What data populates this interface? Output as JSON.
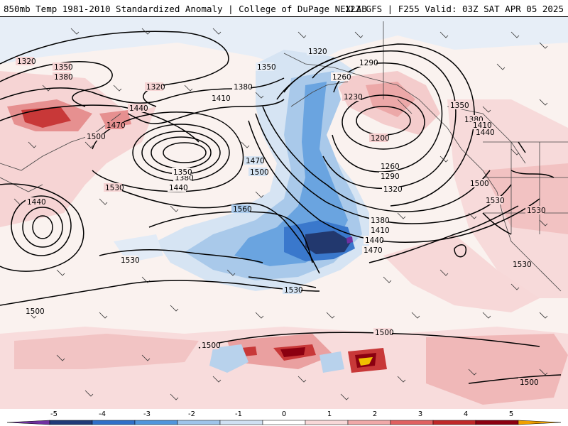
{
  "header": {
    "title_left": "850mb Temp 1981-2010 Standardized Anomaly | College of DuPage NEXLAB",
    "title_right": "12Z GFS | F255 Valid: 03Z SAT APR 05 2025"
  },
  "contour_labels": {
    "l1320a": "1320",
    "l1350a": "1350",
    "l1380a": "1380",
    "l1320b": "1320",
    "l1410a": "1410",
    "l1380b": "1380",
    "l1350b": "1350",
    "l1440a": "1440",
    "l1470a": "1470",
    "l1500a": "1500",
    "l1380c": "1380",
    "l1350c": "1350",
    "l1440b": "1440",
    "l1530a": "1530",
    "l1440c": "1440",
    "l1470b": "1470",
    "l1500b": "1500",
    "l1560": "1560",
    "l1530b": "1530",
    "l1530c": "1530",
    "l1320c": "1320",
    "l1290a": "1290",
    "l1260a": "1260",
    "l1230": "1230",
    "l1200": "1200",
    "l1260b": "1260",
    "l1290b": "1290",
    "l1320d": "1320",
    "l1350d": "1350",
    "l1380d": "1380",
    "l1410b": "1410",
    "l1440d": "1440",
    "l1380e": "1380",
    "l1410c": "1410",
    "l1440e": "1440",
    "l1470c": "1470",
    "l1500c": "1500",
    "l1530d": "1530",
    "l1530e": "1530",
    "l1530f": "1530",
    "l1500d": "1500",
    "l1500e": "1500",
    "l1500f": "1500",
    "l1500g": "1500"
  },
  "colorbar": {
    "ticks": [
      "-5",
      "-4",
      "-3",
      "-2",
      "-1",
      "0",
      "1",
      "2",
      "3",
      "4",
      "5"
    ],
    "colors": [
      "#7030a0",
      "#1f3a78",
      "#2f6fc8",
      "#4f95dc",
      "#9ec4ea",
      "#cfe0f2",
      "#ffffff",
      "#f8d8d8",
      "#f0a8a8",
      "#e06060",
      "#c02828",
      "#8b0010",
      "#f0a000"
    ]
  }
}
